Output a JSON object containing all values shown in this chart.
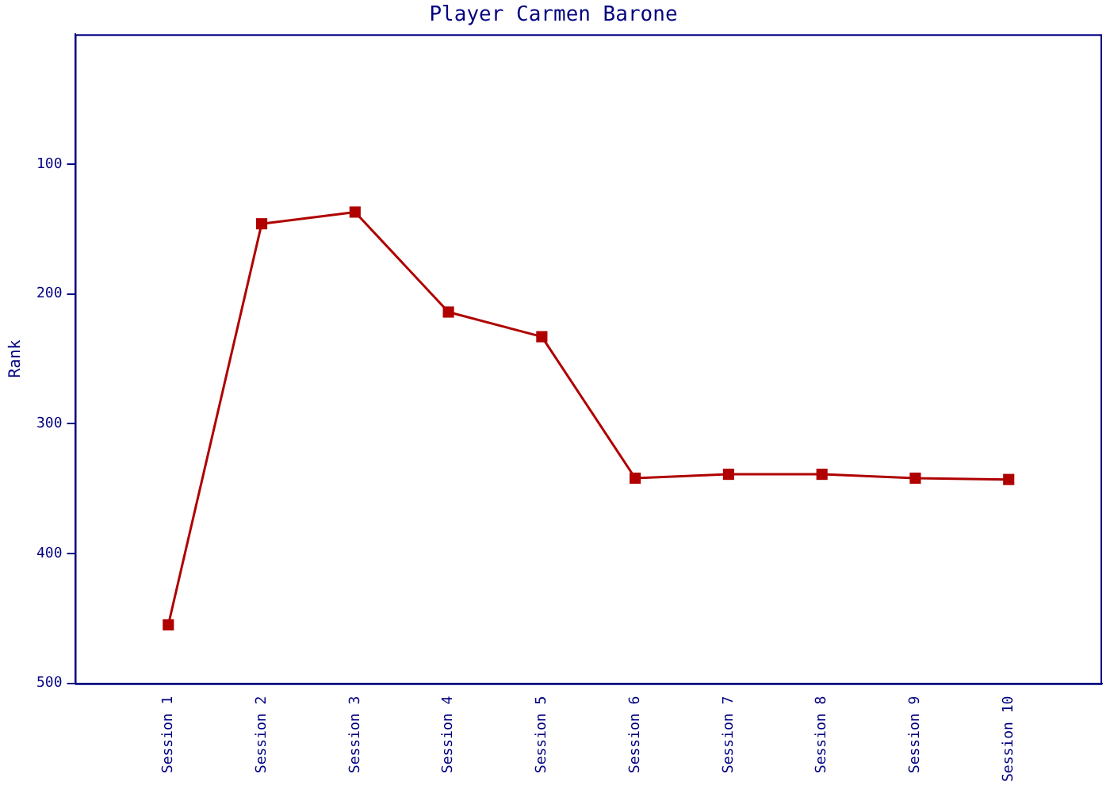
{
  "chart_data": {
    "type": "line",
    "title": "Player Carmen Barone",
    "ylabel": "Rank",
    "categories": [
      "Session 1",
      "Session 2",
      "Session 3",
      "Session 4",
      "Session 5",
      "Session 6",
      "Session 7",
      "Session 8",
      "Session 9",
      "Session 10"
    ],
    "series": [
      {
        "color": "#b00000",
        "values": [
          455,
          146,
          137,
          214,
          233,
          342,
          339,
          339,
          342,
          343
        ]
      }
    ],
    "ylim": [
      500,
      0
    ],
    "yticks": [
      100,
      200,
      300,
      400,
      500
    ],
    "grid": false,
    "legend": false,
    "marker": "square",
    "line_style": "solid"
  }
}
